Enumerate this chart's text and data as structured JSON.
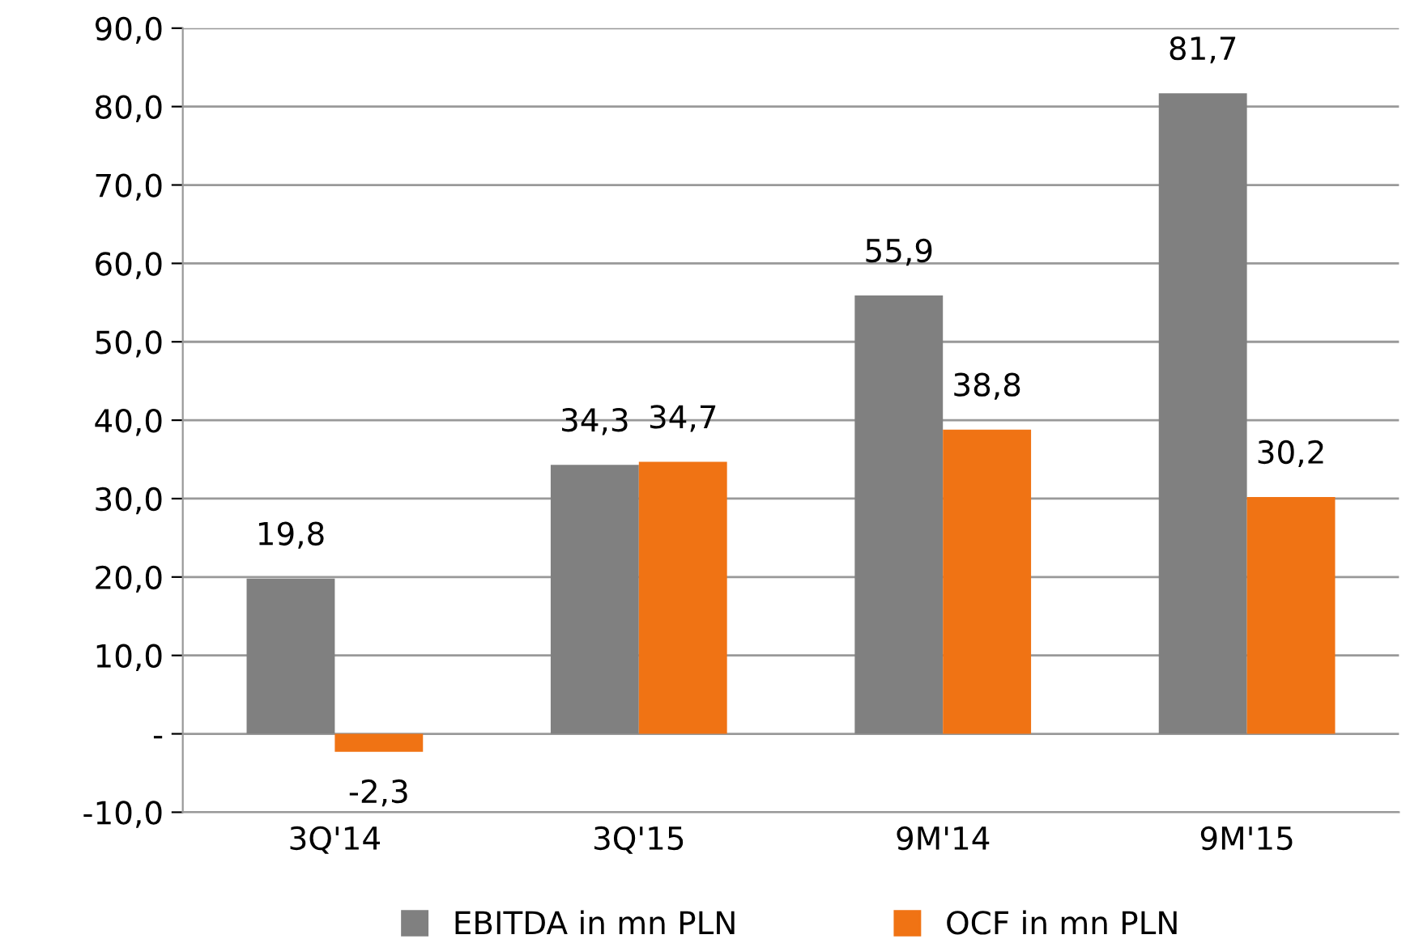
{
  "chart_data": {
    "type": "bar",
    "categories": [
      "3Q'14",
      "3Q'15",
      "9M'14",
      "9M'15"
    ],
    "series": [
      {
        "name": "EBITDA in mn PLN",
        "color": "#808080",
        "values": [
          19.8,
          34.3,
          55.9,
          81.7
        ],
        "value_labels": [
          "19,8",
          "34,3",
          "55,9",
          "81,7"
        ]
      },
      {
        "name": "OCF in mn PLN",
        "color": "#f07314",
        "values": [
          -2.3,
          34.7,
          38.8,
          30.2
        ],
        "value_labels": [
          "-2,3",
          "34,7",
          "38,8",
          "30,2"
        ]
      }
    ],
    "ylim": [
      -10,
      90
    ],
    "yticks": [
      {
        "value": -10,
        "label": "-10,0"
      },
      {
        "value": 0,
        "label": "-"
      },
      {
        "value": 10,
        "label": "10,0"
      },
      {
        "value": 20,
        "label": "20,0"
      },
      {
        "value": 30,
        "label": "30,0"
      },
      {
        "value": 40,
        "label": "40,0"
      },
      {
        "value": 50,
        "label": "50,0"
      },
      {
        "value": 60,
        "label": "60,0"
      },
      {
        "value": 70,
        "label": "70,0"
      },
      {
        "value": 80,
        "label": "80,0"
      },
      {
        "value": 90,
        "label": "90,0"
      }
    ],
    "grid": "y",
    "legend": "bottom"
  }
}
